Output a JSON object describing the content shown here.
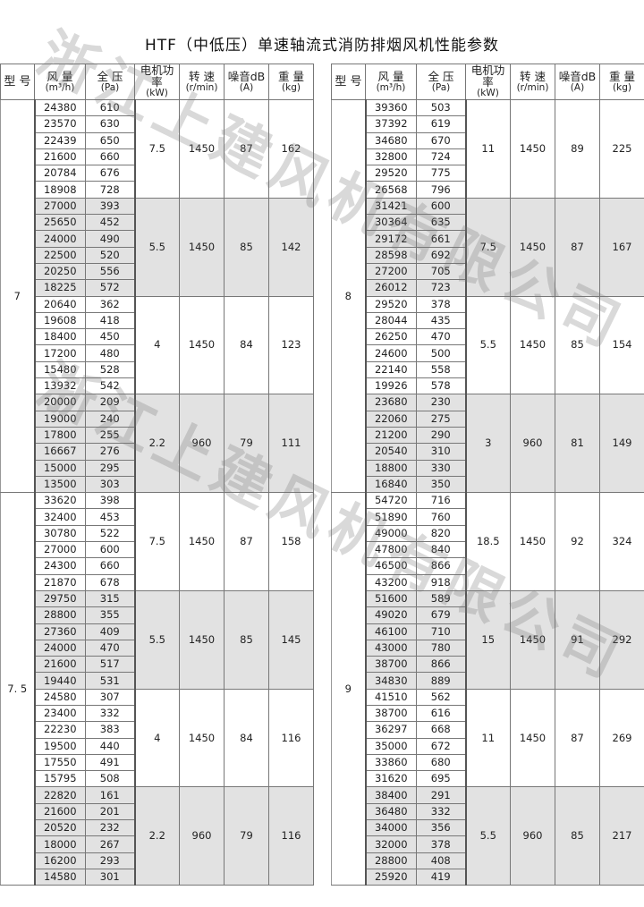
{
  "title": "HTF（中低压）单速轴流式消防排烟风机性能参数",
  "watermark": "浙江上建风机有限公司",
  "headers": {
    "model": "型 号",
    "flow": "风 量",
    "flow_unit": "(m³/h)",
    "pressure": "全 压",
    "pressure_unit": "(Pa)",
    "power": "电机功率",
    "power_unit": "(kW)",
    "speed": "转 速",
    "speed_unit": "(r/min)",
    "noise": "噪音dB",
    "noise_unit": "(A)",
    "weight": "重 量",
    "weight_unit": "(kg)"
  },
  "shade_color": "#e2e2e2",
  "tables": [
    {
      "models": [
        {
          "model": "7",
          "groups": [
            {
              "power": "7.5",
              "speed": "1450",
              "noise": "87",
              "weight": "162",
              "rows": [
                [
                  "24380",
                  "610"
                ],
                [
                  "23570",
                  "630"
                ],
                [
                  "22439",
                  "650"
                ],
                [
                  "21600",
                  "660"
                ],
                [
                  "20784",
                  "676"
                ],
                [
                  "18908",
                  "728"
                ]
              ]
            },
            {
              "power": "5.5",
              "speed": "1450",
              "noise": "85",
              "weight": "142",
              "rows": [
                [
                  "27000",
                  "393"
                ],
                [
                  "25650",
                  "452"
                ],
                [
                  "24000",
                  "490"
                ],
                [
                  "22500",
                  "520"
                ],
                [
                  "20250",
                  "556"
                ],
                [
                  "18225",
                  "572"
                ]
              ]
            },
            {
              "power": "4",
              "speed": "1450",
              "noise": "84",
              "weight": "123",
              "rows": [
                [
                  "20640",
                  "362"
                ],
                [
                  "19608",
                  "418"
                ],
                [
                  "18400",
                  "450"
                ],
                [
                  "17200",
                  "480"
                ],
                [
                  "15480",
                  "528"
                ],
                [
                  "13932",
                  "542"
                ]
              ]
            },
            {
              "power": "2.2",
              "speed": "960",
              "noise": "79",
              "weight": "111",
              "rows": [
                [
                  "20000",
                  "209"
                ],
                [
                  "19000",
                  "240"
                ],
                [
                  "17800",
                  "255"
                ],
                [
                  "16667",
                  "276"
                ],
                [
                  "15000",
                  "295"
                ],
                [
                  "13500",
                  "303"
                ]
              ]
            }
          ]
        },
        {
          "model": "7. 5",
          "groups": [
            {
              "power": "7.5",
              "speed": "1450",
              "noise": "87",
              "weight": "158",
              "rows": [
                [
                  "33620",
                  "398"
                ],
                [
                  "32400",
                  "453"
                ],
                [
                  "30780",
                  "522"
                ],
                [
                  "27000",
                  "600"
                ],
                [
                  "24300",
                  "660"
                ],
                [
                  "21870",
                  "678"
                ]
              ]
            },
            {
              "power": "5.5",
              "speed": "1450",
              "noise": "85",
              "weight": "145",
              "rows": [
                [
                  "29750",
                  "315"
                ],
                [
                  "28800",
                  "355"
                ],
                [
                  "27360",
                  "409"
                ],
                [
                  "24000",
                  "470"
                ],
                [
                  "21600",
                  "517"
                ],
                [
                  "19440",
                  "531"
                ]
              ]
            },
            {
              "power": "4",
              "speed": "1450",
              "noise": "84",
              "weight": "116",
              "rows": [
                [
                  "24580",
                  "307"
                ],
                [
                  "23400",
                  "332"
                ],
                [
                  "22230",
                  "383"
                ],
                [
                  "19500",
                  "440"
                ],
                [
                  "17550",
                  "491"
                ],
                [
                  "15795",
                  "508"
                ]
              ]
            },
            {
              "power": "2.2",
              "speed": "960",
              "noise": "79",
              "weight": "116",
              "rows": [
                [
                  "22820",
                  "161"
                ],
                [
                  "21600",
                  "201"
                ],
                [
                  "20520",
                  "232"
                ],
                [
                  "18000",
                  "267"
                ],
                [
                  "16200",
                  "293"
                ],
                [
                  "14580",
                  "301"
                ]
              ]
            }
          ]
        }
      ]
    },
    {
      "models": [
        {
          "model": "8",
          "groups": [
            {
              "power": "11",
              "speed": "1450",
              "noise": "89",
              "weight": "225",
              "rows": [
                [
                  "39360",
                  "503"
                ],
                [
                  "37392",
                  "619"
                ],
                [
                  "34680",
                  "670"
                ],
                [
                  "32800",
                  "724"
                ],
                [
                  "29520",
                  "775"
                ],
                [
                  "26568",
                  "796"
                ]
              ]
            },
            {
              "power": "7.5",
              "speed": "1450",
              "noise": "87",
              "weight": "167",
              "rows": [
                [
                  "31421",
                  "600"
                ],
                [
                  "30364",
                  "635"
                ],
                [
                  "29172",
                  "661"
                ],
                [
                  "28598",
                  "692"
                ],
                [
                  "27200",
                  "705"
                ],
                [
                  "26012",
                  "723"
                ]
              ]
            },
            {
              "power": "5.5",
              "speed": "1450",
              "noise": "85",
              "weight": "154",
              "rows": [
                [
                  "29520",
                  "378"
                ],
                [
                  "28044",
                  "435"
                ],
                [
                  "26250",
                  "470"
                ],
                [
                  "24600",
                  "500"
                ],
                [
                  "22140",
                  "558"
                ],
                [
                  "19926",
                  "578"
                ]
              ]
            },
            {
              "power": "3",
              "speed": "960",
              "noise": "81",
              "weight": "149",
              "rows": [
                [
                  "23680",
                  "230"
                ],
                [
                  "22060",
                  "275"
                ],
                [
                  "21200",
                  "290"
                ],
                [
                  "20540",
                  "310"
                ],
                [
                  "18800",
                  "330"
                ],
                [
                  "16840",
                  "350"
                ]
              ]
            }
          ]
        },
        {
          "model": "9",
          "groups": [
            {
              "power": "18.5",
              "speed": "1450",
              "noise": "92",
              "weight": "324",
              "rows": [
                [
                  "54720",
                  "716"
                ],
                [
                  "51890",
                  "760"
                ],
                [
                  "49000",
                  "820"
                ],
                [
                  "47800",
                  "840"
                ],
                [
                  "46500",
                  "866"
                ],
                [
                  "43200",
                  "918"
                ]
              ]
            },
            {
              "power": "15",
              "speed": "1450",
              "noise": "91",
              "weight": "292",
              "rows": [
                [
                  "51600",
                  "589"
                ],
                [
                  "49020",
                  "679"
                ],
                [
                  "46100",
                  "710"
                ],
                [
                  "43000",
                  "780"
                ],
                [
                  "38700",
                  "866"
                ],
                [
                  "34830",
                  "889"
                ]
              ]
            },
            {
              "power": "11",
              "speed": "1450",
              "noise": "87",
              "weight": "269",
              "rows": [
                [
                  "41510",
                  "562"
                ],
                [
                  "38700",
                  "616"
                ],
                [
                  "36297",
                  "668"
                ],
                [
                  "35000",
                  "672"
                ],
                [
                  "33860",
                  "680"
                ],
                [
                  "31620",
                  "695"
                ]
              ]
            },
            {
              "power": "5.5",
              "speed": "960",
              "noise": "85",
              "weight": "217",
              "rows": [
                [
                  "38400",
                  "291"
                ],
                [
                  "36480",
                  "332"
                ],
                [
                  "34000",
                  "356"
                ],
                [
                  "32000",
                  "378"
                ],
                [
                  "28800",
                  "408"
                ],
                [
                  "25920",
                  "419"
                ]
              ]
            }
          ]
        }
      ]
    }
  ]
}
